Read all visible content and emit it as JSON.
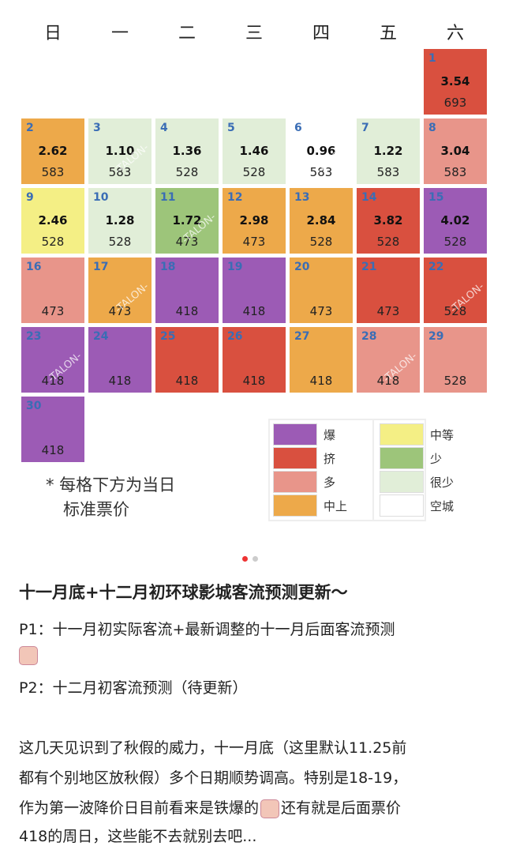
{
  "calendar": {
    "weekdays": [
      "日",
      "一",
      "二",
      "三",
      "四",
      "五",
      "六"
    ],
    "first_column": 6,
    "days": [
      {
        "day": 1,
        "index": "3.54",
        "price": 693,
        "color": "#d9503f"
      },
      {
        "day": 2,
        "index": "2.62",
        "price": 583,
        "color": "#eda94a"
      },
      {
        "day": 3,
        "index": "1.10",
        "price": 583,
        "color": "#e1eed8"
      },
      {
        "day": 4,
        "index": "1.36",
        "price": 528,
        "color": "#e1eed8"
      },
      {
        "day": 5,
        "index": "1.46",
        "price": 528,
        "color": "#e1eed8"
      },
      {
        "day": 6,
        "index": "0.96",
        "price": 583,
        "color": "#ffffff"
      },
      {
        "day": 7,
        "index": "1.22",
        "price": 583,
        "color": "#e1eed8"
      },
      {
        "day": 8,
        "index": "3.04",
        "price": 583,
        "color": "#e8958a"
      },
      {
        "day": 9,
        "index": "2.46",
        "price": 528,
        "color": "#f4ef85"
      },
      {
        "day": 10,
        "index": "1.28",
        "price": 528,
        "color": "#e1eed8"
      },
      {
        "day": 11,
        "index": "1.72",
        "price": 473,
        "color": "#9dc57a"
      },
      {
        "day": 12,
        "index": "2.98",
        "price": 473,
        "color": "#eda94a"
      },
      {
        "day": 13,
        "index": "2.84",
        "price": 528,
        "color": "#eda94a"
      },
      {
        "day": 14,
        "index": "3.82",
        "price": 528,
        "color": "#d9503f"
      },
      {
        "day": 15,
        "index": "4.02",
        "price": 528,
        "color": "#9c5bb5"
      },
      {
        "day": 16,
        "price": 473,
        "color": "#e8958a"
      },
      {
        "day": 17,
        "price": 473,
        "color": "#eda94a"
      },
      {
        "day": 18,
        "price": 418,
        "color": "#9c5bb5"
      },
      {
        "day": 19,
        "price": 418,
        "color": "#9c5bb5"
      },
      {
        "day": 20,
        "price": 473,
        "color": "#eda94a"
      },
      {
        "day": 21,
        "price": 473,
        "color": "#d9503f"
      },
      {
        "day": 22,
        "price": 528,
        "color": "#d9503f"
      },
      {
        "day": 23,
        "price": 418,
        "color": "#9c5bb5"
      },
      {
        "day": 24,
        "price": 418,
        "color": "#9c5bb5"
      },
      {
        "day": 25,
        "price": 418,
        "color": "#d9503f"
      },
      {
        "day": 26,
        "price": 418,
        "color": "#d9503f"
      },
      {
        "day": 27,
        "price": 418,
        "color": "#eda94a"
      },
      {
        "day": 28,
        "price": 418,
        "color": "#e8958a"
      },
      {
        "day": 29,
        "price": 528,
        "color": "#e8958a"
      },
      {
        "day": 30,
        "price": 418,
        "color": "#9c5bb5"
      }
    ],
    "watermark": "-TALON-",
    "legend": [
      {
        "label": "爆",
        "color": "#9c5bb5"
      },
      {
        "label": "挤",
        "color": "#d9503f"
      },
      {
        "label": "多",
        "color": "#e8958a"
      },
      {
        "label": "中上",
        "color": "#eda94a"
      },
      {
        "label": "中等",
        "color": "#f4ef85"
      },
      {
        "label": "少",
        "color": "#9dc57a"
      },
      {
        "label": "很少",
        "color": "#e1eed8"
      },
      {
        "label": "空城",
        "color": "#ffffff"
      }
    ],
    "note": [
      "* 每格下方为当日",
      "标准票价"
    ]
  },
  "post": {
    "title": "十一月底+十二月初环球影城客流预测更新～",
    "p1": "P1：十一月初实际客流+最新调整的十一月后面客流预测",
    "p2": "P2：十二月初客流预测（待更新）",
    "body": [
      "这几天见识到了秋假的威力，十一月底（这里默认11.25前",
      "都有个别地区放秋假）多个日期顺势调高。特别是18-19，",
      "作为第一波降价日目前看来是铁爆的",
      "还有就是后面票价",
      "418的周日，这些能不去就别去吧..."
    ]
  }
}
